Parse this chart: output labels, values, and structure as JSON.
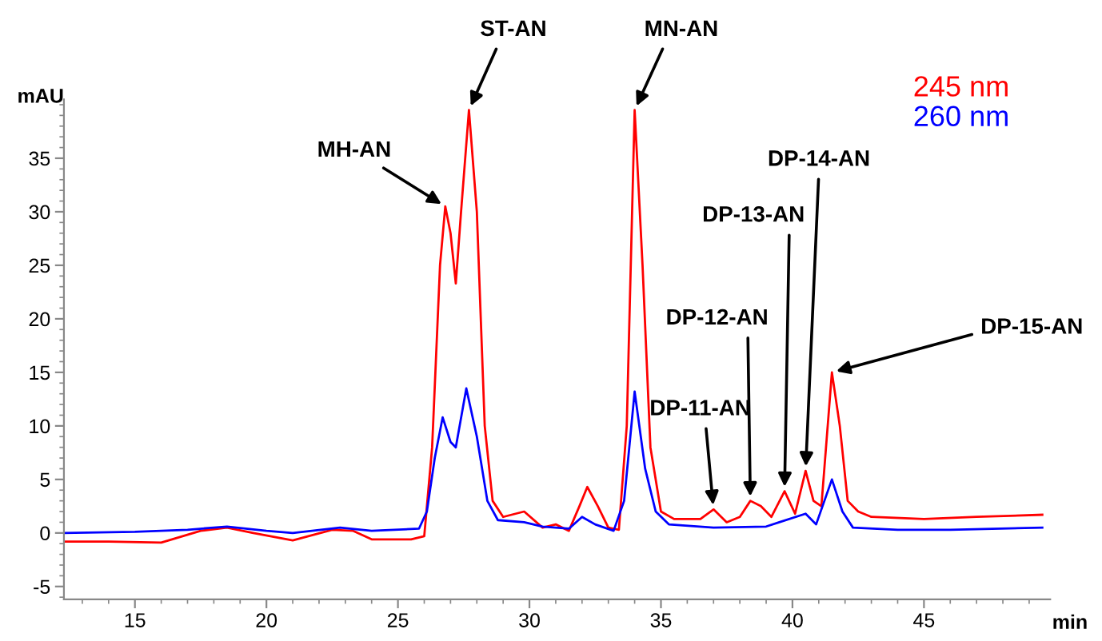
{
  "chart_data": {
    "type": "line",
    "xlabel": "min",
    "ylabel": "mAU",
    "xlim": [
      12.3,
      49.8
    ],
    "ylim": [
      -6.2,
      40.5
    ],
    "xticks": [
      15,
      20,
      25,
      30,
      35,
      40,
      45
    ],
    "yticks": [
      -5,
      0,
      5,
      10,
      15,
      20,
      25,
      30,
      35
    ],
    "grid": false,
    "legend": "top right",
    "marker": "none",
    "line_style": "solid",
    "series": [
      {
        "name": "245 nm",
        "color": "#ff0000",
        "x": [
          12.3,
          14,
          16,
          17.5,
          18.5,
          19.5,
          21,
          22.5,
          23.3,
          24,
          25.5,
          26,
          26.3,
          26.6,
          26.8,
          27.0,
          27.2,
          27.4,
          27.7,
          28.0,
          28.3,
          28.6,
          29,
          29.8,
          30.5,
          31,
          31.5,
          31.9,
          32.2,
          32.6,
          33,
          33.4,
          33.7,
          34,
          34.3,
          34.6,
          35,
          35.5,
          36.5,
          37.0,
          37.5,
          38.0,
          38.4,
          38.8,
          39.2,
          39.7,
          40.1,
          40.5,
          40.8,
          41.1,
          41.5,
          41.8,
          42.1,
          42.5,
          43,
          45,
          47,
          49.5
        ],
        "values": [
          -0.8,
          -0.8,
          -0.9,
          0.2,
          0.5,
          0,
          -0.7,
          0.3,
          0.2,
          -0.6,
          -0.6,
          -0.3,
          8,
          25,
          30.5,
          28,
          23.3,
          30,
          39.5,
          30,
          10,
          3,
          1.5,
          2,
          0.5,
          0.8,
          0.2,
          2.5,
          4.3,
          2.5,
          0.5,
          0.3,
          10,
          39.5,
          25,
          8,
          2,
          1.3,
          1.3,
          2.2,
          1.0,
          1.5,
          3.0,
          2.5,
          1.5,
          3.9,
          1.8,
          5.8,
          3,
          2.5,
          15,
          10,
          3,
          2,
          1.5,
          1.3,
          1.5,
          1.7
        ]
      },
      {
        "name": "260 nm",
        "color": "#0000ff",
        "x": [
          12.3,
          15,
          17,
          18.5,
          20,
          21,
          22.8,
          24,
          25.8,
          26.1,
          26.4,
          26.7,
          27.0,
          27.2,
          27.6,
          28.0,
          28.4,
          28.8,
          29.8,
          30.5,
          31.5,
          32.0,
          32.5,
          33.2,
          33.6,
          34.0,
          34.4,
          34.8,
          35.3,
          37,
          39,
          39.5,
          40.5,
          40.9,
          41.5,
          41.9,
          42.3,
          44,
          46,
          49.5
        ],
        "values": [
          0,
          0.1,
          0.3,
          0.6,
          0.2,
          0,
          0.5,
          0.2,
          0.4,
          2,
          7,
          10.8,
          8.5,
          8,
          13.5,
          9,
          3,
          1.2,
          1,
          0.6,
          0.4,
          1.5,
          0.8,
          0.2,
          3,
          13.2,
          6,
          2,
          0.8,
          0.5,
          0.6,
          1.0,
          1.8,
          0.8,
          5,
          2,
          0.5,
          0.3,
          0.3,
          0.5
        ]
      }
    ],
    "annotations": [
      {
        "text": "MH-AN",
        "x": 26.8,
        "y": 30.5
      },
      {
        "text": "ST-AN",
        "x": 27.7,
        "y": 39.5
      },
      {
        "text": "MN-AN",
        "x": 34.0,
        "y": 39.5
      },
      {
        "text": "DP-11-AN",
        "x": 37.0,
        "y": 2.2
      },
      {
        "text": "DP-12-AN",
        "x": 38.4,
        "y": 3.0
      },
      {
        "text": "DP-13-AN",
        "x": 39.7,
        "y": 3.9
      },
      {
        "text": "DP-14-AN",
        "x": 40.5,
        "y": 5.8
      },
      {
        "text": "DP-15-AN",
        "x": 41.5,
        "y": 15
      }
    ]
  }
}
